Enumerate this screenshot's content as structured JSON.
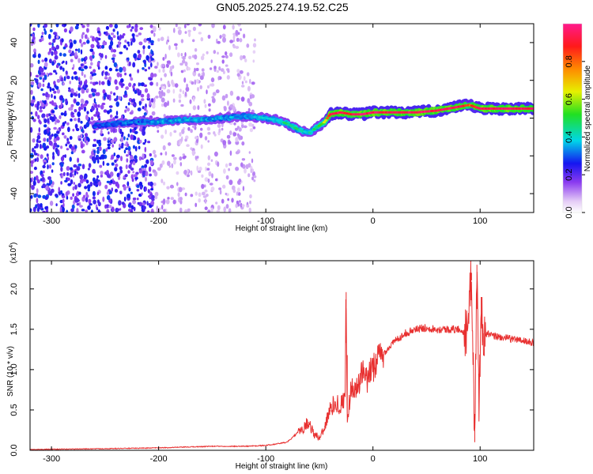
{
  "title": "GN05.2025.274.19.52.C25",
  "chart_data": [
    {
      "type": "heatmap",
      "xlabel": "Height of straight line (km)",
      "ylabel": "Frequency (Hz)",
      "xlim": [
        -320,
        150
      ],
      "ylim": [
        -50,
        50
      ],
      "xticks": [
        "-300",
        "-200",
        "-100",
        "0",
        "100"
      ],
      "xtick_values": [
        -300,
        -200,
        -100,
        0,
        100
      ],
      "yticks": [
        "-40",
        "-20",
        "0",
        "20",
        "40"
      ],
      "ytick_values": [
        -40,
        -20,
        0,
        20,
        40
      ],
      "colorbar": {
        "label": "Normalized spectral amplitude",
        "range": [
          0,
          1
        ],
        "ticks": [
          "0.0",
          "0.2",
          "0.4",
          "0.6",
          "0.8"
        ],
        "tick_values": [
          0,
          0.2,
          0.4,
          0.6,
          0.8
        ]
      },
      "ridge": {
        "x": [
          -260,
          -240,
          -220,
          -200,
          -180,
          -160,
          -140,
          -120,
          -100,
          -90,
          -80,
          -70,
          -60,
          -50,
          -45,
          -40,
          -30,
          -20,
          -10,
          0,
          20,
          40,
          60,
          80,
          90,
          100,
          120,
          150
        ],
        "frequency": [
          -4,
          -3,
          -2,
          -2,
          -1,
          -1,
          0,
          1,
          0,
          -1,
          -3,
          -6,
          -8,
          -4,
          -2,
          2,
          3,
          2,
          2,
          3,
          3,
          3,
          4,
          6,
          7,
          5,
          5,
          5
        ],
        "amplitude": [
          0.25,
          0.3,
          0.3,
          0.35,
          0.35,
          0.35,
          0.35,
          0.35,
          0.4,
          0.4,
          0.45,
          0.45,
          0.4,
          0.5,
          0.6,
          0.95,
          0.95,
          0.9,
          0.95,
          0.95,
          0.95,
          0.95,
          0.95,
          0.95,
          0.8,
          0.95,
          0.95,
          0.95
        ]
      }
    },
    {
      "type": "line",
      "xlabel": "Height of straight line (km)",
      "ylabel": "SNR (10 * v/v)",
      "scale_label": "(x10",
      "scale_exp": "4",
      "scale_close": ")",
      "xlim": [
        -320,
        150
      ],
      "ylim": [
        0,
        2.35
      ],
      "xticks": [
        "-300",
        "-200",
        "-100",
        "0",
        "100"
      ],
      "xtick_values": [
        -300,
        -200,
        -100,
        0,
        100
      ],
      "yticks": [
        "0.0",
        "0.5",
        "1.0",
        "1.5",
        "2.0"
      ],
      "ytick_values": [
        0,
        0.5,
        1.0,
        1.5,
        2.0
      ],
      "series": [
        {
          "color": "#e83030",
          "x": [
            -320,
            -250,
            -200,
            -150,
            -120,
            -100,
            -80,
            -70,
            -60,
            -55,
            -50,
            -45,
            -40,
            -35,
            -30,
            -26,
            -25,
            -24,
            -20,
            -15,
            -10,
            -5,
            0,
            10,
            20,
            30,
            40,
            50,
            60,
            70,
            80,
            88,
            92,
            95,
            97,
            99,
            101,
            103,
            106,
            110,
            120,
            130,
            140,
            150
          ],
          "y": [
            0.01,
            0.02,
            0.03,
            0.05,
            0.05,
            0.06,
            0.1,
            0.22,
            0.35,
            0.2,
            0.15,
            0.3,
            0.5,
            0.6,
            0.55,
            0.7,
            1.96,
            0.4,
            0.8,
            0.75,
            0.95,
            0.85,
            1.05,
            1.2,
            1.35,
            1.45,
            1.5,
            1.52,
            1.5,
            1.5,
            1.5,
            1.45,
            2.2,
            0.1,
            2.3,
            0.5,
            1.9,
            1.3,
            1.45,
            1.42,
            1.4,
            1.38,
            1.36,
            1.33
          ]
        }
      ]
    }
  ]
}
